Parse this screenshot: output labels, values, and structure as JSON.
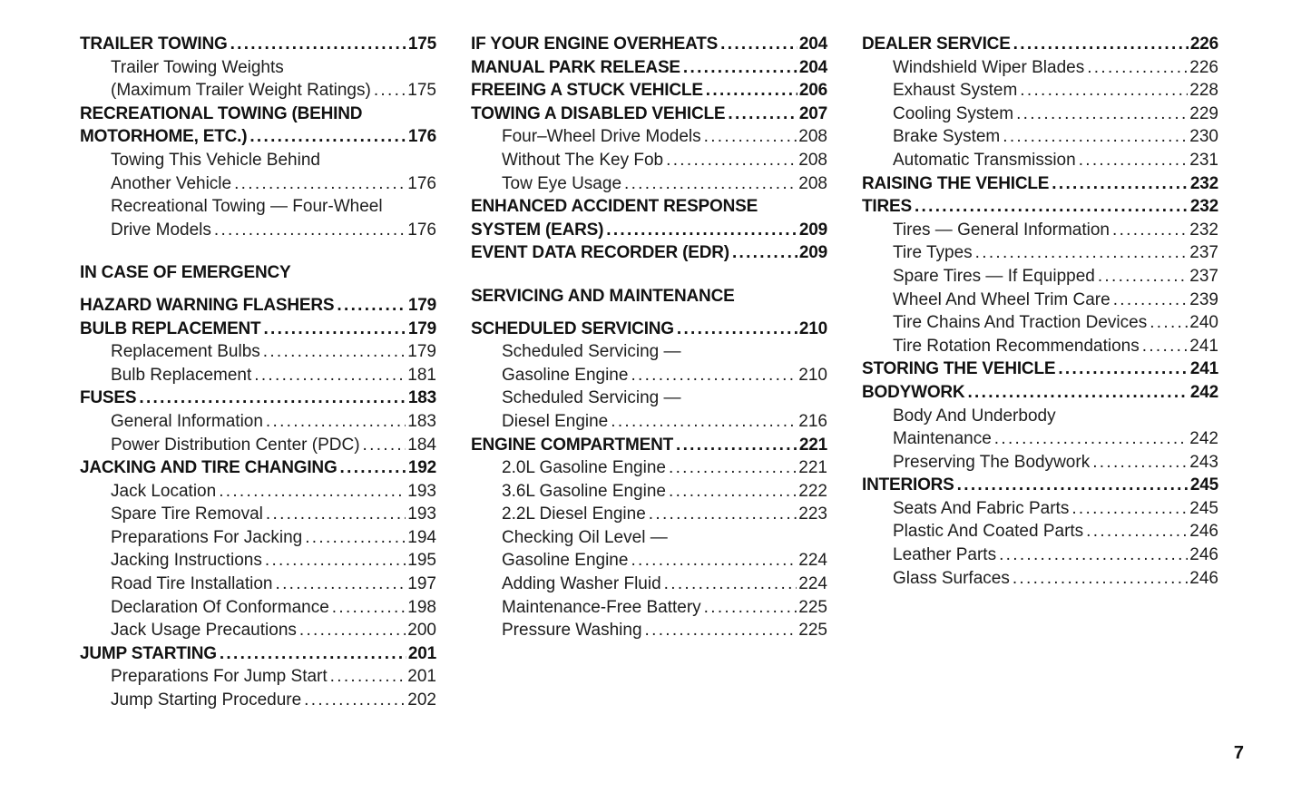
{
  "page": {
    "number": "7",
    "background": "#ffffff",
    "text_color": "#121212"
  },
  "columns": [
    {
      "rows": [
        {
          "style": "main",
          "text": "TRAILER TOWING",
          "page": "175"
        },
        {
          "style": "sub",
          "text": "Trailer Towing Weights"
        },
        {
          "style": "sub",
          "text": "(Maximum Trailer Weight Ratings)",
          "page": "175"
        },
        {
          "style": "main",
          "text": "RECREATIONAL TOWING (BEHIND"
        },
        {
          "style": "main",
          "text": "MOTORHOME, ETC.)",
          "page": "176"
        },
        {
          "style": "sub",
          "text": "Towing This Vehicle Behind"
        },
        {
          "style": "sub",
          "text": "Another Vehicle",
          "page": "176"
        },
        {
          "style": "sub",
          "text": "Recreational Towing — Four-Wheel"
        },
        {
          "style": "sub",
          "text": "Drive Models",
          "page": "176"
        },
        {
          "style": "section",
          "text": "IN CASE OF EMERGENCY"
        },
        {
          "style": "main",
          "text": "HAZARD WARNING FLASHERS",
          "page": "179"
        },
        {
          "style": "main",
          "text": "BULB REPLACEMENT",
          "page": "179"
        },
        {
          "style": "sub",
          "text": "Replacement Bulbs",
          "page": "179"
        },
        {
          "style": "sub",
          "text": "Bulb Replacement",
          "page": "181"
        },
        {
          "style": "main",
          "text": "FUSES",
          "page": "183"
        },
        {
          "style": "sub",
          "text": "General Information",
          "page": "183"
        },
        {
          "style": "sub",
          "text": "Power Distribution Center (PDC)",
          "page": "184"
        },
        {
          "style": "main",
          "text": "JACKING AND TIRE CHANGING",
          "page": "192"
        },
        {
          "style": "sub",
          "text": "Jack Location",
          "page": "193"
        },
        {
          "style": "sub",
          "text": "Spare Tire Removal",
          "page": "193"
        },
        {
          "style": "sub",
          "text": "Preparations For Jacking",
          "page": "194"
        },
        {
          "style": "sub",
          "text": "Jacking Instructions",
          "page": "195"
        },
        {
          "style": "sub",
          "text": "Road Tire Installation",
          "page": "197"
        },
        {
          "style": "sub",
          "text": "Declaration Of Conformance",
          "page": "198"
        },
        {
          "style": "sub",
          "text": "Jack Usage Precautions",
          "page": "200"
        },
        {
          "style": "main",
          "text": "JUMP STARTING",
          "page": "201"
        },
        {
          "style": "sub",
          "text": "Preparations For Jump Start",
          "page": "201"
        },
        {
          "style": "sub",
          "text": "Jump Starting Procedure",
          "page": "202"
        }
      ]
    },
    {
      "rows": [
        {
          "style": "main",
          "text": "IF YOUR ENGINE OVERHEATS",
          "page": "204"
        },
        {
          "style": "main",
          "text": "MANUAL PARK RELEASE",
          "page": "204"
        },
        {
          "style": "main",
          "text": "FREEING A STUCK VEHICLE",
          "page": "206"
        },
        {
          "style": "main",
          "text": "TOWING A DISABLED VEHICLE",
          "page": "207"
        },
        {
          "style": "sub",
          "text": "Four–Wheel Drive Models",
          "page": "208"
        },
        {
          "style": "sub",
          "text": "Without The Key Fob",
          "page": "208"
        },
        {
          "style": "sub",
          "text": "Tow Eye Usage",
          "page": "208"
        },
        {
          "style": "main",
          "text": "ENHANCED ACCIDENT RESPONSE"
        },
        {
          "style": "main",
          "text": "SYSTEM (EARS)",
          "page": "209"
        },
        {
          "style": "main",
          "text": "EVENT DATA RECORDER (EDR)",
          "page": "209"
        },
        {
          "style": "section",
          "text": "SERVICING AND MAINTENANCE"
        },
        {
          "style": "main",
          "text": "SCHEDULED SERVICING",
          "page": "210"
        },
        {
          "style": "sub",
          "text": "Scheduled Servicing —"
        },
        {
          "style": "sub",
          "text": "Gasoline Engine",
          "page": "210"
        },
        {
          "style": "sub",
          "text": "Scheduled Servicing —"
        },
        {
          "style": "sub",
          "text": "Diesel Engine",
          "page": "216"
        },
        {
          "style": "main",
          "text": "ENGINE COMPARTMENT",
          "page": "221"
        },
        {
          "style": "sub",
          "text": "2.0L Gasoline Engine",
          "page": "221"
        },
        {
          "style": "sub",
          "text": "3.6L Gasoline Engine",
          "page": "222"
        },
        {
          "style": "sub",
          "text": "2.2L Diesel Engine",
          "page": "223"
        },
        {
          "style": "sub",
          "text": "Checking Oil Level —"
        },
        {
          "style": "sub",
          "text": "Gasoline Engine",
          "page": "224"
        },
        {
          "style": "sub",
          "text": "Adding Washer Fluid",
          "page": "224"
        },
        {
          "style": "sub",
          "text": "Maintenance-Free Battery",
          "page": "225"
        },
        {
          "style": "sub",
          "text": "Pressure Washing",
          "page": "225"
        }
      ]
    },
    {
      "rows": [
        {
          "style": "main",
          "text": "DEALER SERVICE",
          "page": "226"
        },
        {
          "style": "sub",
          "text": "Windshield Wiper Blades",
          "page": "226"
        },
        {
          "style": "sub",
          "text": "Exhaust System",
          "page": "228"
        },
        {
          "style": "sub",
          "text": "Cooling System",
          "page": "229"
        },
        {
          "style": "sub",
          "text": "Brake System",
          "page": "230"
        },
        {
          "style": "sub",
          "text": "Automatic Transmission",
          "page": "231"
        },
        {
          "style": "main",
          "text": "RAISING THE VEHICLE",
          "page": "232"
        },
        {
          "style": "main",
          "text": "TIRES",
          "page": "232"
        },
        {
          "style": "sub",
          "text": "Tires — General Information",
          "page": "232"
        },
        {
          "style": "sub",
          "text": "Tire Types",
          "page": "237"
        },
        {
          "style": "sub",
          "text": "Spare Tires — If Equipped",
          "page": "237"
        },
        {
          "style": "sub",
          "text": "Wheel And Wheel Trim Care",
          "page": "239"
        },
        {
          "style": "sub",
          "text": "Tire Chains And Traction Devices",
          "page": "240"
        },
        {
          "style": "sub",
          "text": "Tire Rotation Recommendations",
          "page": "241"
        },
        {
          "style": "main",
          "text": "STORING THE VEHICLE",
          "page": "241"
        },
        {
          "style": "main",
          "text": "BODYWORK",
          "page": "242"
        },
        {
          "style": "sub",
          "text": "Body And Underbody"
        },
        {
          "style": "sub",
          "text": "Maintenance",
          "page": "242"
        },
        {
          "style": "sub",
          "text": "Preserving The Bodywork",
          "page": "243"
        },
        {
          "style": "main",
          "text": "INTERIORS",
          "page": "245"
        },
        {
          "style": "sub",
          "text": "Seats And Fabric Parts",
          "page": "245"
        },
        {
          "style": "sub",
          "text": "Plastic And Coated Parts",
          "page": "246"
        },
        {
          "style": "sub",
          "text": "Leather Parts",
          "page": "246"
        },
        {
          "style": "sub",
          "text": "Glass Surfaces",
          "page": "246"
        }
      ]
    }
  ]
}
